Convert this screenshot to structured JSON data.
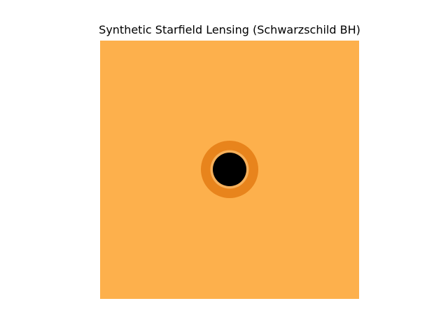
{
  "figure": {
    "title": "Synthetic Starfield Lensing (Schwarzschild BH)"
  },
  "image": {
    "description_colors": {
      "background": "#fdb04c",
      "ring_outer": "#e8841c",
      "ring_inner_edge": "#f7b05a",
      "shadow": "#000000"
    }
  }
}
